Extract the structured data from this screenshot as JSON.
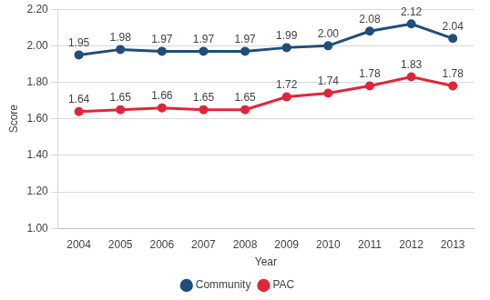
{
  "chart_data": {
    "type": "line",
    "x_label": "Year",
    "y_label": "Score",
    "categories": [
      "2004",
      "2005",
      "2006",
      "2007",
      "2008",
      "2009",
      "2010",
      "2011",
      "2012",
      "2013"
    ],
    "series": [
      {
        "name": "Community",
        "color": "#1f4e79",
        "marker": "circle",
        "values": [
          1.95,
          1.98,
          1.97,
          1.97,
          1.97,
          1.99,
          2.0,
          2.08,
          2.12,
          2.04
        ],
        "value_labels": [
          "1.95",
          "1.98",
          "1.97",
          "1.97",
          "1.97",
          "1.99",
          "2.00",
          "2.08",
          "2.12",
          "2.04"
        ]
      },
      {
        "name": "PAC",
        "color": "#e0263a",
        "marker": "circle",
        "values": [
          1.64,
          1.65,
          1.66,
          1.65,
          1.65,
          1.72,
          1.74,
          1.78,
          1.83,
          1.78
        ],
        "value_labels": [
          "1.64",
          "1.65",
          "1.66",
          "1.65",
          "1.65",
          "1.72",
          "1.74",
          "1.78",
          "1.83",
          "1.78"
        ]
      }
    ],
    "ylim": [
      1.0,
      2.2
    ],
    "yticks": [
      {
        "value": 1.0,
        "label": "1.00"
      },
      {
        "value": 1.2,
        "label": "1.20"
      },
      {
        "value": 1.4,
        "label": "1.40"
      },
      {
        "value": 1.6,
        "label": "1.60"
      },
      {
        "value": 1.8,
        "label": "1.80"
      },
      {
        "value": 2.0,
        "label": "2.00"
      },
      {
        "value": 2.2,
        "label": "2.20"
      }
    ],
    "grid": true,
    "legend": "bottom",
    "data_labels": true
  }
}
